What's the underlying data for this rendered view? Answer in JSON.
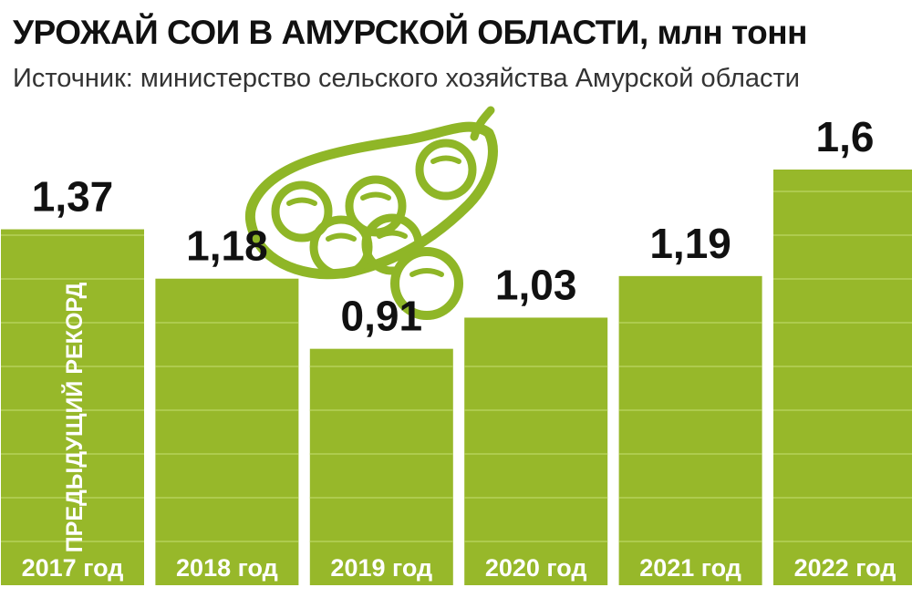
{
  "header": {
    "title": "УРОЖАЙ СОИ В АМУРСКОЙ ОБЛАСТИ, млн тонн",
    "subtitle": "Источник: министерство сельского хозяйства Амурской области"
  },
  "colors": {
    "bar": "#97b82a",
    "gridline": "#b6d15a",
    "icon": "#8fb627"
  },
  "icon": "soybean-pod-icon",
  "chart_data": {
    "type": "bar",
    "title": "УРОЖАЙ СОИ В АМУРСКОЙ ОБЛАСТИ, млн тонн",
    "categories": [
      "2017 год",
      "2018 год",
      "2019 год",
      "2020 год",
      "2021 год",
      "2022 год"
    ],
    "values": [
      1.37,
      1.18,
      0.91,
      1.03,
      1.19,
      1.6
    ],
    "value_labels": [
      "1,37",
      "1,18",
      "0,91",
      "1,03",
      "1,19",
      "1,6"
    ],
    "annotation": "ПРЕДЫДУЩИЙ РЕКОРД",
    "annotation_category": "2017 год",
    "grid": true
  }
}
